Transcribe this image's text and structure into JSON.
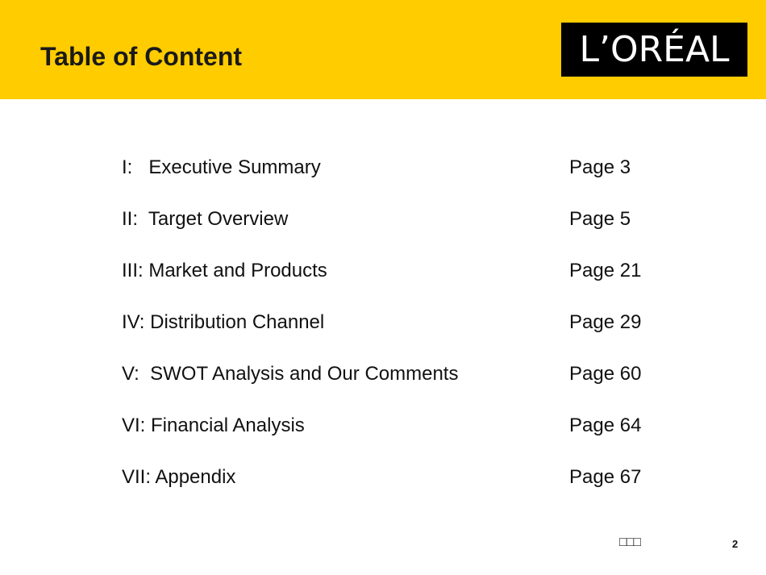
{
  "slide": {
    "title": "Table of Content",
    "header_color": "#ffcc00",
    "logo": {
      "text": "L’ORÉAL",
      "background": "#000000",
      "text_color": "#ffffff"
    }
  },
  "toc": {
    "items": [
      {
        "label": "I:   Executive Summary",
        "page": "Page 3"
      },
      {
        "label": "II:  Target Overview",
        "page": "Page 5"
      },
      {
        "label": "III: Market and Products",
        "page": "Page 21"
      },
      {
        "label": "IV: Distribution Channel",
        "page": "Page 29"
      },
      {
        "label": "V:  SWOT Analysis and Our Comments",
        "page": "Page 60"
      },
      {
        "label": "VI: Financial Analysis",
        "page": "Page 64"
      },
      {
        "label": "VII: Appendix",
        "page": "Page 67"
      }
    ]
  },
  "footer": {
    "mark": "□□□",
    "page_number": "2"
  }
}
